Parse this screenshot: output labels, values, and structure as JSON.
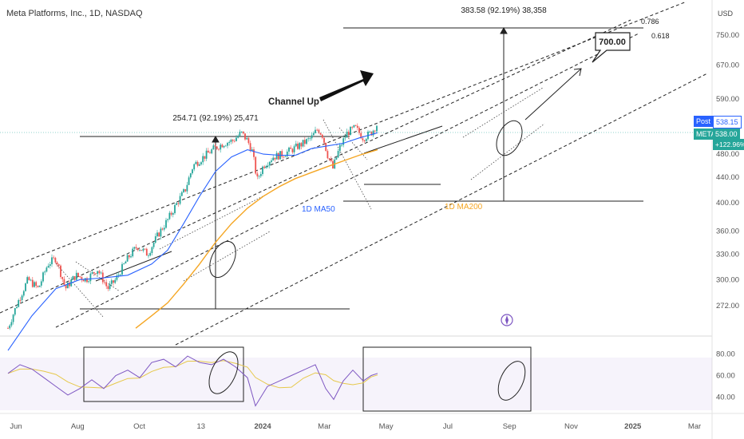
{
  "header": {
    "symbol_title": "Meta Platforms, Inc., 1D, NASDAQ",
    "currency": "USD"
  },
  "price_tags": {
    "post_label": "Post",
    "post_value": "538.15",
    "meta_label": "META",
    "meta_value": "538.00",
    "change_text": "+122.96%"
  },
  "colors": {
    "up": "#26a69a",
    "down": "#ef5350",
    "ma50": "#2962ff",
    "ma200": "#f5a623",
    "rsi": "#7e57c2",
    "rsi_ma": "#e6c84a",
    "post_tag": "#2962ff",
    "meta_tag": "#26a69a"
  },
  "chart_data": {
    "type": "line",
    "price_axis": {
      "ticks": [
        272,
        300,
        330,
        360,
        400,
        440,
        480,
        530,
        590,
        670,
        750
      ],
      "labels": [
        "272.00",
        "300.00",
        "330.00",
        "360.00",
        "400.00",
        "440.00",
        "480.00",
        "530.00",
        "590.00",
        "670.00",
        "750.00"
      ],
      "scale": "log"
    },
    "rsi_axis": {
      "ticks": [
        40,
        60,
        80
      ],
      "labels": [
        "40.00",
        "60.00",
        "80.00"
      ],
      "band": [
        30,
        70
      ]
    },
    "time_axis": {
      "labels": [
        "Jun",
        "Aug",
        "Oct",
        "13",
        "2024",
        "Mar",
        "May",
        "Jul",
        "Sep",
        "Nov",
        "2025",
        "Mar"
      ],
      "bold": [
        "2024",
        "2025"
      ]
    },
    "annotations": {
      "channel_up": "Channel Up",
      "ma50_label": "1D MA50",
      "ma200_label": "1D MA200",
      "measure_1": "254.71 (92.19%) 25,471",
      "measure_2": "383.58 (92.19%) 38,358",
      "target": "700.00",
      "fib_786": "0.786",
      "fib_618": "0.618"
    },
    "price_series": [
      {
        "t": 0,
        "v": 250
      },
      {
        "t": 12,
        "v": 275
      },
      {
        "t": 25,
        "v": 300
      },
      {
        "t": 38,
        "v": 290
      },
      {
        "t": 50,
        "v": 318
      },
      {
        "t": 60,
        "v": 325
      },
      {
        "t": 72,
        "v": 290
      },
      {
        "t": 85,
        "v": 305
      },
      {
        "t": 98,
        "v": 300
      },
      {
        "t": 112,
        "v": 312
      },
      {
        "t": 125,
        "v": 290
      },
      {
        "t": 135,
        "v": 300
      },
      {
        "t": 150,
        "v": 325
      },
      {
        "t": 162,
        "v": 340
      },
      {
        "t": 175,
        "v": 330
      },
      {
        "t": 188,
        "v": 355
      },
      {
        "t": 200,
        "v": 375
      },
      {
        "t": 212,
        "v": 400
      },
      {
        "t": 222,
        "v": 420
      },
      {
        "t": 232,
        "v": 460
      },
      {
        "t": 245,
        "v": 475
      },
      {
        "t": 258,
        "v": 490
      },
      {
        "t": 270,
        "v": 500
      },
      {
        "t": 282,
        "v": 505
      },
      {
        "t": 292,
        "v": 520
      },
      {
        "t": 300,
        "v": 505
      },
      {
        "t": 306,
        "v": 485
      },
      {
        "t": 312,
        "v": 435
      },
      {
        "t": 320,
        "v": 460
      },
      {
        "t": 332,
        "v": 475
      },
      {
        "t": 345,
        "v": 480
      },
      {
        "t": 358,
        "v": 490
      },
      {
        "t": 370,
        "v": 500
      },
      {
        "t": 380,
        "v": 510
      },
      {
        "t": 388,
        "v": 528
      },
      {
        "t": 394,
        "v": 515
      },
      {
        "t": 400,
        "v": 480
      },
      {
        "t": 407,
        "v": 455
      },
      {
        "t": 415,
        "v": 490
      },
      {
        "t": 425,
        "v": 520
      },
      {
        "t": 435,
        "v": 530
      },
      {
        "t": 445,
        "v": 510
      },
      {
        "t": 455,
        "v": 520
      },
      {
        "t": 463,
        "v": 538
      }
    ],
    "ma50": [
      {
        "t": 0,
        "v": 230
      },
      {
        "t": 30,
        "v": 262
      },
      {
        "t": 60,
        "v": 290
      },
      {
        "t": 90,
        "v": 300
      },
      {
        "t": 120,
        "v": 302
      },
      {
        "t": 150,
        "v": 305
      },
      {
        "t": 180,
        "v": 318
      },
      {
        "t": 200,
        "v": 335
      },
      {
        "t": 220,
        "v": 370
      },
      {
        "t": 240,
        "v": 410
      },
      {
        "t": 260,
        "v": 450
      },
      {
        "t": 280,
        "v": 475
      },
      {
        "t": 300,
        "v": 488
      },
      {
        "t": 320,
        "v": 480
      },
      {
        "t": 340,
        "v": 478
      },
      {
        "t": 360,
        "v": 478
      },
      {
        "t": 380,
        "v": 490
      },
      {
        "t": 400,
        "v": 495
      },
      {
        "t": 420,
        "v": 500
      },
      {
        "t": 440,
        "v": 510
      },
      {
        "t": 463,
        "v": 520
      }
    ],
    "ma200": [
      {
        "t": 160,
        "v": 250
      },
      {
        "t": 180,
        "v": 262
      },
      {
        "t": 200,
        "v": 275
      },
      {
        "t": 220,
        "v": 295
      },
      {
        "t": 240,
        "v": 318
      },
      {
        "t": 260,
        "v": 345
      },
      {
        "t": 280,
        "v": 370
      },
      {
        "t": 300,
        "v": 392
      },
      {
        "t": 320,
        "v": 410
      },
      {
        "t": 340,
        "v": 425
      },
      {
        "t": 360,
        "v": 438
      },
      {
        "t": 380,
        "v": 448
      },
      {
        "t": 400,
        "v": 458
      },
      {
        "t": 420,
        "v": 468
      },
      {
        "t": 440,
        "v": 478
      },
      {
        "t": 463,
        "v": 488
      }
    ],
    "rsi": [
      {
        "t": 0,
        "v": 62
      },
      {
        "t": 15,
        "v": 70
      },
      {
        "t": 30,
        "v": 66
      },
      {
        "t": 45,
        "v": 58
      },
      {
        "t": 60,
        "v": 50
      },
      {
        "t": 75,
        "v": 42
      },
      {
        "t": 90,
        "v": 48
      },
      {
        "t": 105,
        "v": 56
      },
      {
        "t": 120,
        "v": 48
      },
      {
        "t": 135,
        "v": 60
      },
      {
        "t": 150,
        "v": 65
      },
      {
        "t": 165,
        "v": 58
      },
      {
        "t": 180,
        "v": 72
      },
      {
        "t": 195,
        "v": 75
      },
      {
        "t": 210,
        "v": 68
      },
      {
        "t": 225,
        "v": 78
      },
      {
        "t": 240,
        "v": 72
      },
      {
        "t": 255,
        "v": 70
      },
      {
        "t": 270,
        "v": 75
      },
      {
        "t": 285,
        "v": 68
      },
      {
        "t": 300,
        "v": 58
      },
      {
        "t": 310,
        "v": 32
      },
      {
        "t": 325,
        "v": 50
      },
      {
        "t": 340,
        "v": 55
      },
      {
        "t": 355,
        "v": 60
      },
      {
        "t": 370,
        "v": 65
      },
      {
        "t": 385,
        "v": 70
      },
      {
        "t": 398,
        "v": 48
      },
      {
        "t": 408,
        "v": 38
      },
      {
        "t": 420,
        "v": 55
      },
      {
        "t": 432,
        "v": 65
      },
      {
        "t": 445,
        "v": 55
      },
      {
        "t": 455,
        "v": 60
      },
      {
        "t": 463,
        "v": 62
      }
    ]
  }
}
